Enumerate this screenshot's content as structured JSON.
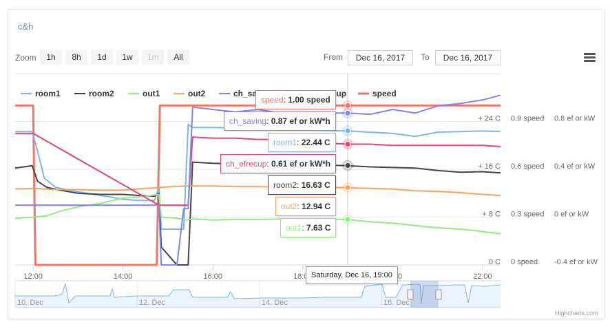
{
  "page": {
    "title": "c&h",
    "credits": "Highcharts.com"
  },
  "toolbar": {
    "zoom_label": "Zoom",
    "zoom_buttons": [
      {
        "label": "1h",
        "enabled": true
      },
      {
        "label": "8h",
        "enabled": true
      },
      {
        "label": "1d",
        "enabled": true
      },
      {
        "label": "1w",
        "enabled": true
      },
      {
        "label": "1m",
        "enabled": false
      },
      {
        "label": "All",
        "enabled": true
      }
    ],
    "from_label": "From",
    "from_value": "Dec 16, 2017",
    "to_label": "To",
    "to_value": "Dec 16, 2017",
    "menu_icon": "hamburger-menu-icon"
  },
  "tooltip": {
    "header": "Saturday, Dec 16, 19:00",
    "items": [
      {
        "series": "speed",
        "value": "1.00 speed",
        "color": "#f0766b"
      },
      {
        "series": "ch_saving",
        "value": "0.87 ef or kW*h",
        "color": "#8085e9"
      },
      {
        "series": "room1",
        "value": "22.44 C",
        "color": "#7cb5ec"
      },
      {
        "series": "ch_efrecup",
        "value": "0.61 ef or kW*h",
        "color": "#e4466e"
      },
      {
        "series": "room2",
        "value": "16.63 C",
        "color": "#434348"
      },
      {
        "series": "out2",
        "value": "12.94 C",
        "color": "#f7a35c"
      },
      {
        "series": "out1",
        "value": "7.63 C",
        "color": "#90ed7d"
      }
    ]
  },
  "chart_data": {
    "type": "line",
    "x_unit": "hour of day, Dec 16, 2017",
    "x_ticks": [
      "12:00",
      "14:00",
      "16:00",
      "18:00",
      "20:00",
      "22:00"
    ],
    "xlim": [
      11.6,
      22.4
    ],
    "legend_position": "top",
    "axes": [
      {
        "id": "temp",
        "ticks": [
          "0 C",
          "+ 8 C",
          "+ 16 C",
          "+ 24 C"
        ],
        "ylim": [
          0,
          30
        ]
      },
      {
        "id": "speed",
        "ticks": [
          "0 speed",
          "0.3 speed",
          "0.6 speed",
          "0.9 speed"
        ],
        "ylim": [
          0,
          1.0
        ]
      },
      {
        "id": "ef",
        "ticks": [
          "-0.4 ef or kW",
          "0 ef or kW",
          "0.4 ef or kW",
          "0.8 ef or kW"
        ],
        "ylim": [
          -0.4,
          1.1
        ]
      }
    ],
    "series": [
      {
        "name": "room1",
        "color": "#7cb5ec",
        "axis": "temp",
        "x": [
          11.6,
          11.98,
          12.1,
          12.25,
          12.5,
          12.8,
          13.2,
          13.6,
          14.0,
          14.3,
          14.7,
          14.8,
          14.85,
          15.2,
          15.35,
          15.45,
          15.55,
          16.0,
          16.5,
          17.0,
          17.5,
          18.0,
          18.5,
          19.0,
          19.5,
          20.0,
          20.5,
          21.0,
          21.5,
          22.0,
          22.4
        ],
        "y": [
          22.3,
          22.3,
          19,
          14.5,
          13,
          12.5,
          12,
          11.5,
          11,
          10.8,
          10.8,
          13,
          6,
          6,
          6,
          23.5,
          23,
          23,
          22.9,
          22.9,
          22.7,
          22.6,
          22.5,
          22.4,
          22.2,
          22,
          21.5,
          22.2,
          22.3,
          22.4,
          22.3
        ]
      },
      {
        "name": "room2",
        "color": "#434348",
        "axis": "temp",
        "x": [
          11.6,
          11.98,
          12.1,
          12.3,
          12.6,
          13.0,
          13.5,
          14.0,
          14.4,
          14.7,
          14.8,
          14.85,
          15.2,
          15.35,
          15.45,
          15.55,
          16.0,
          16.5,
          17.0,
          17.5,
          18.0,
          18.5,
          19.0,
          19.5,
          20.0,
          20.5,
          21.0,
          21.5,
          22.0,
          22.4
        ],
        "y": [
          16.2,
          16.6,
          14,
          13,
          12.5,
          12,
          11.8,
          11.8,
          11.6,
          11.5,
          12,
          3,
          0,
          0,
          0,
          17.2,
          17,
          16.9,
          16.8,
          16.8,
          16.8,
          16.7,
          16.6,
          16.4,
          16.3,
          16.2,
          15.8,
          15.5,
          15.6,
          15.4
        ]
      },
      {
        "name": "out1",
        "color": "#90ed7d",
        "axis": "temp",
        "x": [
          11.6,
          12.0,
          12.3,
          12.6,
          13.0,
          13.5,
          14.0,
          14.5,
          14.8,
          14.85,
          15.2,
          15.4,
          15.6,
          16.0,
          16.5,
          17.0,
          17.5,
          18.0,
          18.5,
          19.0,
          19.5,
          20.0,
          20.5,
          21.0,
          21.5,
          22.0,
          22.4
        ],
        "y": [
          7.8,
          8,
          8.2,
          9,
          9.7,
          10.3,
          11.2,
          11.5,
          11.8,
          8,
          7.8,
          7.5,
          7.7,
          7.5,
          7.6,
          7.6,
          7.7,
          7.6,
          7.7,
          7.6,
          7.2,
          7,
          6.6,
          6.2,
          6,
          5.6,
          5.2
        ]
      },
      {
        "name": "out2",
        "color": "#f7a35c",
        "axis": "temp",
        "x": [
          11.6,
          12.0,
          12.5,
          13.0,
          13.5,
          14.0,
          14.5,
          14.8,
          14.85,
          15.4,
          15.6,
          16.0,
          16.5,
          17.0,
          17.5,
          18.0,
          18.5,
          19.0,
          19.5,
          20.0,
          20.5,
          21.0,
          21.5,
          22.0,
          22.4
        ],
        "y": [
          12.7,
          12.8,
          12.6,
          12.6,
          12.5,
          12.5,
          12.8,
          12.9,
          13,
          13.2,
          13.2,
          13.2,
          13.1,
          13.1,
          13,
          13,
          13,
          12.9,
          12.8,
          12.7,
          12.4,
          12.3,
          12.1,
          11.8,
          11.6
        ]
      },
      {
        "name": "ch_saving",
        "color": "#8085e9",
        "axis": "ef",
        "x": [
          11.6,
          12.0,
          14.8,
          14.85,
          15.2,
          15.35,
          15.45,
          15.55,
          16.0,
          16.5,
          17.0,
          17.5,
          18.0,
          18.5,
          19.0,
          19.5,
          20.0,
          20.5,
          21.0,
          21.5,
          22.0,
          22.4
        ],
        "y": [
          0.1,
          0.1,
          0.1,
          -0.4,
          -0.4,
          0.07,
          0.07,
          0.92,
          0.9,
          0.88,
          0.9,
          0.87,
          0.87,
          0.87,
          0.87,
          0.86,
          0.9,
          0.87,
          0.93,
          0.95,
          0.98,
          1.02
        ]
      },
      {
        "name": "ch_efrecup",
        "color": "#e4466e",
        "axis": "ef",
        "x": [
          11.6,
          12.0,
          14.8,
          14.85,
          15.45,
          15.55,
          16.0,
          16.5,
          17.0,
          17.5,
          18.0,
          18.5,
          19.0,
          19.5,
          20.0,
          20.5,
          21.0,
          21.5,
          22.0,
          22.4
        ],
        "y": [
          0.7,
          0.7,
          0.1,
          0.1,
          0.1,
          0.67,
          0.66,
          0.66,
          0.65,
          0.65,
          0.64,
          0.62,
          0.61,
          0.61,
          0.6,
          0.6,
          0.6,
          0.6,
          0.6,
          0.59
        ]
      },
      {
        "name": "speed",
        "color": "#f0766b",
        "axis": "speed",
        "x": [
          11.6,
          12.0,
          12.05,
          14.75,
          14.82,
          22.4
        ],
        "y": [
          1.0,
          1.0,
          0,
          0,
          1.0,
          1.0
        ]
      }
    ]
  },
  "navigator": {
    "labels": [
      "10. Dec",
      "12. Dec",
      "14. Dec",
      "16. Dec"
    ],
    "selected_range": [
      "Dec 16, 2017",
      "Dec 16, 2017"
    ]
  }
}
